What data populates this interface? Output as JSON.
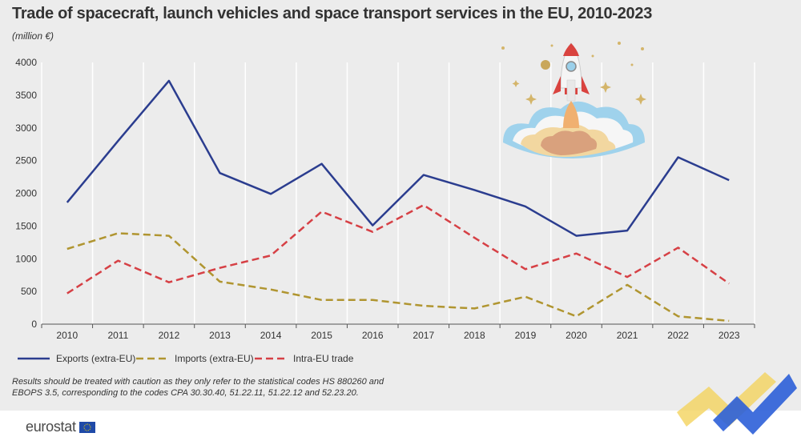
{
  "header": {
    "title": "Trade of spacecraft, launch vehicles and space transport services in the EU, 2010-2023",
    "unit": "(million €)"
  },
  "chart_data": {
    "type": "line",
    "title": "Trade of spacecraft, launch vehicles and space transport services in the EU, 2010-2023",
    "ylabel": "(million €)",
    "xlabel": "",
    "ylim": [
      0,
      4000
    ],
    "yticks": [
      0,
      500,
      1000,
      1500,
      2000,
      2500,
      3000,
      3500,
      4000
    ],
    "categories": [
      "2010",
      "2011",
      "2012",
      "2013",
      "2014",
      "2015",
      "2016",
      "2017",
      "2018",
      "2019",
      "2020",
      "2021",
      "2022",
      "2023"
    ],
    "grid": "vertical",
    "legend_position": "bottom-left",
    "series": [
      {
        "name": "Exports (extra-EU)",
        "color": "#2b3d8f",
        "dash": "solid",
        "values": [
          1860,
          2800,
          3720,
          2310,
          1990,
          2450,
          1510,
          2280,
          2050,
          1800,
          1350,
          1430,
          2550,
          2200
        ]
      },
      {
        "name": "Imports (extra-EU)",
        "color": "#b09530",
        "dash": "dashed",
        "values": [
          1150,
          1390,
          1350,
          650,
          530,
          370,
          370,
          280,
          240,
          420,
          120,
          600,
          120,
          50
        ]
      },
      {
        "name": "Intra-EU trade",
        "color": "#d64045",
        "dash": "dashed",
        "values": [
          470,
          970,
          640,
          860,
          1050,
          1720,
          1410,
          1820,
          1320,
          840,
          1080,
          720,
          1170,
          620
        ]
      }
    ]
  },
  "note": "Results should be treated with caution as they only refer to the statistical codes HS 880260 and EBOPS 3.5, corresponding to the codes CPA 30.30.40, 51.22.11, 51.22.12 and 52.23.20.",
  "footer": {
    "logo_text": "eurostat"
  }
}
